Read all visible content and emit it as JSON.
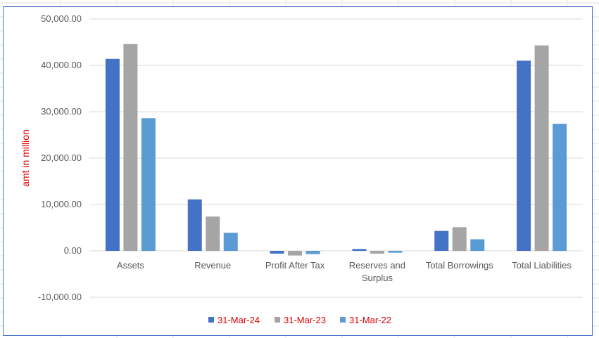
{
  "colors": {
    "series_2024": "#4472c4",
    "series_2023": "#a5a5a5",
    "series_2022": "#5b9bd5",
    "axis_title": "#e00000",
    "legend_text": "#e00000",
    "gridline": "#d9d9d9",
    "chart_border": "#4472c4"
  },
  "chart_data": {
    "type": "bar",
    "categories": [
      [
        "Assets"
      ],
      [
        "Revenue"
      ],
      [
        "Profit After Tax"
      ],
      [
        "Reserves and",
        "Surplus"
      ],
      [
        "Total Borrowings"
      ],
      [
        "Total Liabilities"
      ]
    ],
    "series": [
      {
        "name": "31-Mar-24",
        "values": [
          41400,
          11100,
          -600,
          400,
          4300,
          41000
        ]
      },
      {
        "name": "31-Mar-23",
        "values": [
          44600,
          7400,
          -1000,
          -600,
          5100,
          44300
        ]
      },
      {
        "name": "31-Mar-22",
        "values": [
          28600,
          3900,
          -700,
          -400,
          2500,
          27400
        ]
      }
    ],
    "title": "",
    "xlabel": "",
    "ylabel": "amt in million",
    "ylim": [
      -10000,
      50000
    ],
    "yticks": [
      {
        "value": 50000,
        "label": "50,000.00"
      },
      {
        "value": 40000,
        "label": "40,000.00"
      },
      {
        "value": 30000,
        "label": "30,000.00"
      },
      {
        "value": 20000,
        "label": "20,000.00"
      },
      {
        "value": 10000,
        "label": "10,000.00"
      },
      {
        "value": 0,
        "label": "0.00"
      },
      {
        "value": -10000,
        "label": "-10,000.00"
      }
    ],
    "grid": true,
    "legend": "bottom"
  }
}
